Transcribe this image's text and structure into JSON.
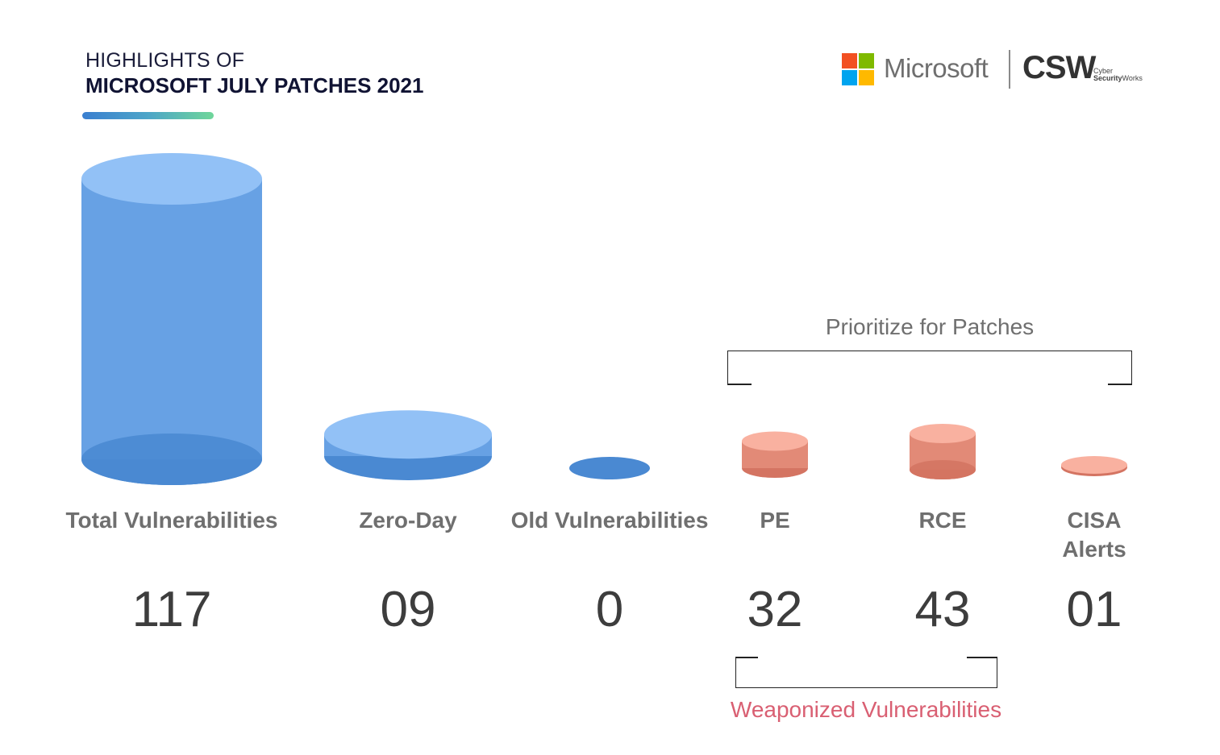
{
  "header": {
    "line1": "HIGHLIGHTS OF",
    "line2": "MICROSOFT JULY PATCHES 2021"
  },
  "logos": {
    "microsoft": "Microsoft",
    "csw": "CSW",
    "csw_sub1": "Cyber",
    "csw_sub2": "Security",
    "csw_sub3": "Works",
    "ms_colors": [
      "#f25022",
      "#7fba00",
      "#00a4ef",
      "#ffb900"
    ]
  },
  "colors": {
    "blue_top": "#92c1f6",
    "blue_body": "#67a1e4",
    "blue_bottom": "#4a89d2",
    "red_top": "#f9b1a0",
    "red_body": "#e28a77",
    "red_bottom": "#d47462",
    "weaponized_text": "#d95f72"
  },
  "chart_data": {
    "type": "bar",
    "categories": [
      "Total Vulnerabilities",
      "Zero-Day",
      "Old Vulnerabilities",
      "PE",
      "RCE",
      "CISA Alerts"
    ],
    "values": [
      117,
      9,
      0,
      32,
      43,
      1
    ],
    "value_labels": [
      "117",
      "09",
      "0",
      "32",
      "43",
      "01"
    ],
    "groups": [
      {
        "label": "Prioritize for Patches",
        "members": [
          "PE",
          "RCE",
          "CISA Alerts"
        ]
      },
      {
        "label": "Weaponized Vulnerabilities",
        "members": [
          "PE",
          "RCE"
        ]
      }
    ]
  }
}
